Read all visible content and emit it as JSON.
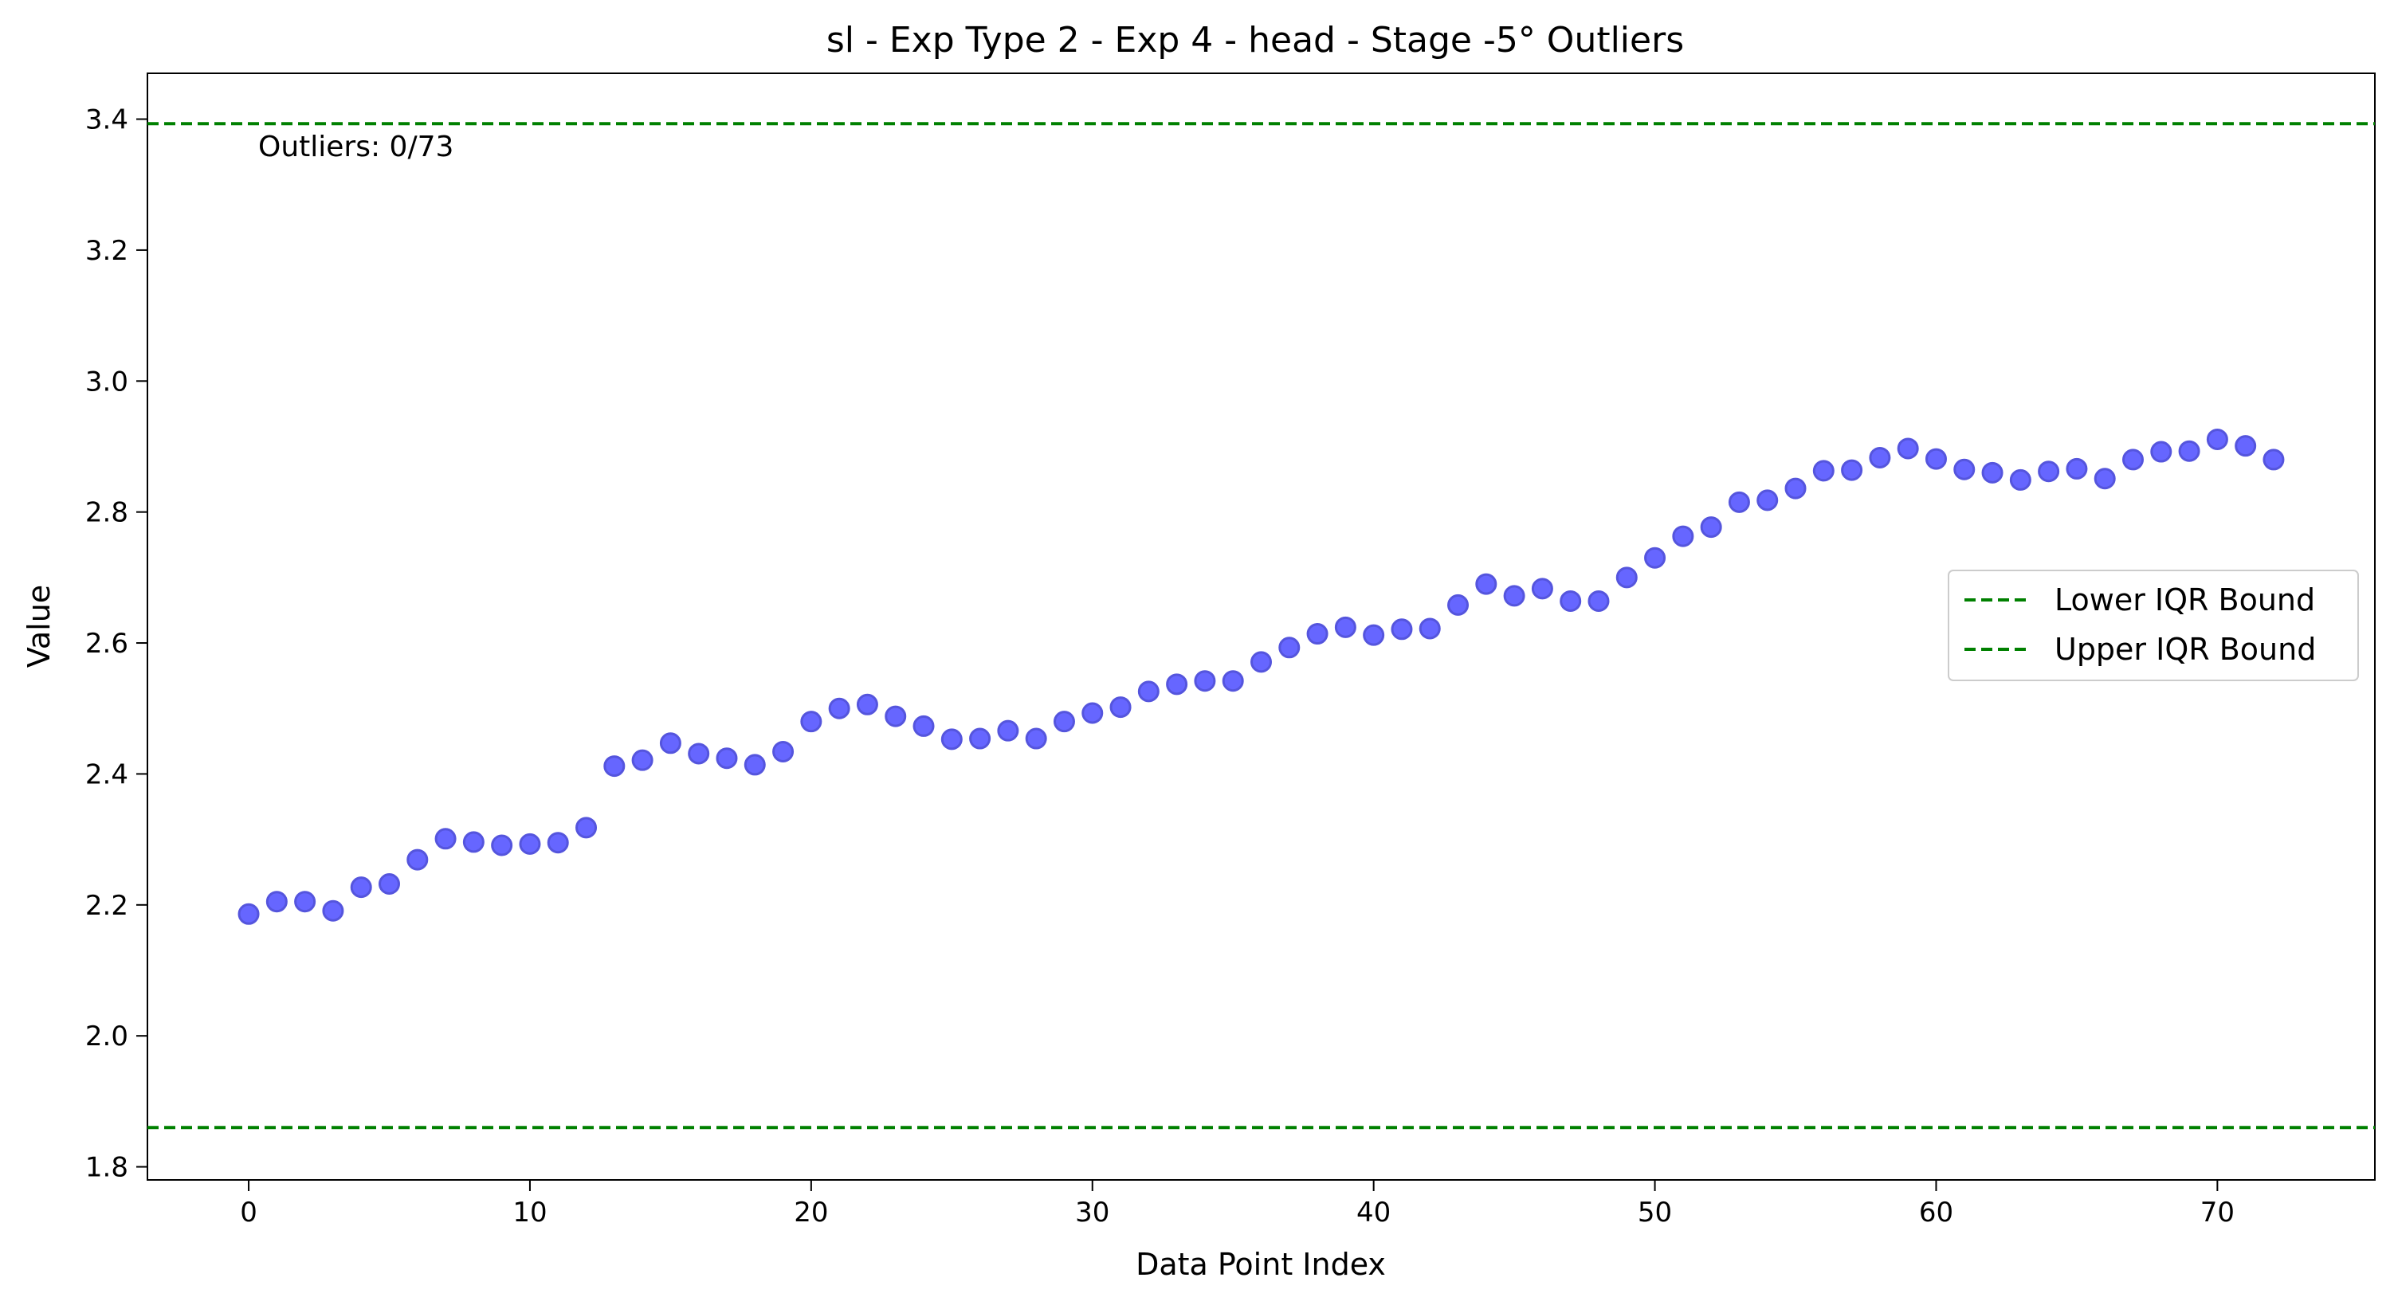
{
  "chart_data": {
    "type": "scatter",
    "title": "sl - Exp Type 2 - Exp 4 - head - Stage -5° Outliers",
    "xlabel": "Data Point Index",
    "ylabel": "Value",
    "xlim": [
      -3.6,
      75.6
    ],
    "ylim": [
      1.78,
      3.47
    ],
    "x_ticks": [
      0,
      10,
      20,
      30,
      40,
      50,
      60,
      70
    ],
    "y_ticks": [
      1.8,
      2.0,
      2.2,
      2.4,
      2.6,
      2.8,
      3.0,
      3.2,
      3.4
    ],
    "grid": false,
    "point_color": "#6666ff",
    "point_edge_color": "#5555dd",
    "bound_color": "#008000",
    "annotation": "Outliers: 0/73",
    "legend_position": "center-right",
    "legend": [
      {
        "label": "Lower IQR Bound",
        "value": 1.86
      },
      {
        "label": "Upper IQR Bound",
        "value": 3.393
      }
    ],
    "x": [
      0,
      1,
      2,
      3,
      4,
      5,
      6,
      7,
      8,
      9,
      10,
      11,
      12,
      13,
      14,
      15,
      16,
      17,
      18,
      19,
      20,
      21,
      22,
      23,
      24,
      25,
      26,
      27,
      28,
      29,
      30,
      31,
      32,
      33,
      34,
      35,
      36,
      37,
      38,
      39,
      40,
      41,
      42,
      43,
      44,
      45,
      46,
      47,
      48,
      49,
      50,
      51,
      52,
      53,
      54,
      55,
      56,
      57,
      58,
      59,
      60,
      61,
      62,
      63,
      64,
      65,
      66,
      67,
      68,
      69,
      70,
      71,
      72
    ],
    "y": [
      2.186,
      2.205,
      2.205,
      2.191,
      2.227,
      2.232,
      2.269,
      2.301,
      2.296,
      2.291,
      2.293,
      2.295,
      2.318,
      2.412,
      2.421,
      2.447,
      2.431,
      2.424,
      2.414,
      2.434,
      2.48,
      2.5,
      2.506,
      2.488,
      2.473,
      2.453,
      2.454,
      2.466,
      2.454,
      2.48,
      2.493,
      2.502,
      2.526,
      2.537,
      2.542,
      2.542,
      2.571,
      2.593,
      2.614,
      2.624,
      2.612,
      2.621,
      2.622,
      2.658,
      2.69,
      2.672,
      2.683,
      2.664,
      2.664,
      2.7,
      2.73,
      2.763,
      2.777,
      2.815,
      2.818,
      2.836,
      2.863,
      2.864,
      2.883,
      2.897,
      2.881,
      2.865,
      2.86,
      2.849,
      2.862,
      2.866,
      2.851,
      2.88,
      2.892,
      2.893,
      2.911,
      2.901,
      2.88
    ]
  }
}
